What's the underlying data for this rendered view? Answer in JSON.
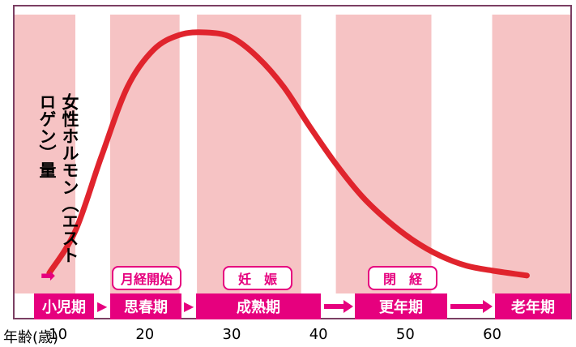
{
  "chart_data": {
    "type": "line",
    "ylabel": "女性ホルモン（エストロゲン）量",
    "xlabel_prefix": "年齢(歳)",
    "x_ticks": [
      "10",
      "20",
      "30",
      "40",
      "50",
      "60"
    ],
    "xlim": [
      5,
      69
    ],
    "ylim": [
      0,
      100
    ],
    "series": [
      {
        "points": [
          [
            9,
            3
          ],
          [
            12,
            20
          ],
          [
            15,
            50
          ],
          [
            18,
            78
          ],
          [
            21,
            93
          ],
          [
            24,
            99
          ],
          [
            27,
            100
          ],
          [
            30,
            98
          ],
          [
            33,
            90
          ],
          [
            36,
            78
          ],
          [
            39,
            62
          ],
          [
            42,
            47
          ],
          [
            45,
            34
          ],
          [
            48,
            24
          ],
          [
            51,
            16
          ],
          [
            54,
            10
          ],
          [
            57,
            6
          ],
          [
            60,
            4
          ],
          [
            64,
            2
          ]
        ],
        "color": "#e0242d"
      }
    ],
    "bands": [
      {
        "from": 5,
        "to": 12
      },
      {
        "from": 16,
        "to": 24
      },
      {
        "from": 26,
        "to": 38
      },
      {
        "from": 42,
        "to": 53
      },
      {
        "from": 60,
        "to": 69
      }
    ],
    "stages": [
      {
        "label": "小児期"
      },
      {
        "label": "思春期"
      },
      {
        "label": "成熟期"
      },
      {
        "label": "更年期"
      },
      {
        "label": "老年期"
      }
    ],
    "events": [
      {
        "label": "月経開始"
      },
      {
        "label": "妊　娠"
      },
      {
        "label": "閉　経"
      }
    ],
    "colors": {
      "band": "#f6c3c4",
      "stage": "#e6007e",
      "curve": "#e0242d",
      "frame": "#7b3f63"
    }
  }
}
